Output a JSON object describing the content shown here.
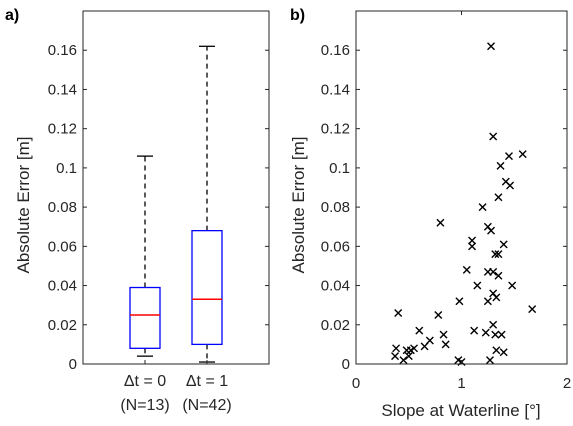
{
  "chart_data": [
    {
      "type": "box",
      "panel_label": "a)",
      "ylabel": "Absolute Error [m]",
      "ylim": [
        0,
        0.18
      ],
      "yticks": [
        "0",
        "0.02",
        "0.04",
        "0.06",
        "0.08",
        "0.1",
        "0.12",
        "0.14",
        "0.16"
      ],
      "categories": [
        {
          "label": "Δt = 0",
          "sublabel": "(N=13)"
        },
        {
          "label": "Δt = 1",
          "sublabel": "(N=42)"
        }
      ],
      "boxes": [
        {
          "min": 0.004,
          "q1": 0.008,
          "median": 0.025,
          "q3": 0.039,
          "max": 0.106
        },
        {
          "min": 0.001,
          "q1": 0.01,
          "median": 0.033,
          "q3": 0.068,
          "max": 0.162
        }
      ],
      "box_color": "#0000ff",
      "median_color": "#ff0000"
    },
    {
      "type": "scatter",
      "panel_label": "b)",
      "xlabel": "Slope at Waterline [°]",
      "ylabel": "Absolute Error [m]",
      "xlim": [
        0,
        2
      ],
      "ylim": [
        0,
        0.18
      ],
      "xticks": [
        "0",
        "1",
        "2"
      ],
      "yticks": [
        "0",
        "0.02",
        "0.04",
        "0.06",
        "0.08",
        "0.1",
        "0.12",
        "0.14",
        "0.16"
      ],
      "marker": "x",
      "marker_color": "#000000",
      "points": [
        [
          0.37,
          0.004
        ],
        [
          0.38,
          0.008
        ],
        [
          0.4,
          0.026
        ],
        [
          0.45,
          0.002
        ],
        [
          0.48,
          0.007
        ],
        [
          0.5,
          0.004
        ],
        [
          0.52,
          0.007
        ],
        [
          0.55,
          0.008
        ],
        [
          0.6,
          0.017
        ],
        [
          0.65,
          0.009
        ],
        [
          0.7,
          0.012
        ],
        [
          0.78,
          0.025
        ],
        [
          0.8,
          0.072
        ],
        [
          0.83,
          0.015
        ],
        [
          0.85,
          0.01
        ],
        [
          0.97,
          0.002
        ],
        [
          0.98,
          0.032
        ],
        [
          1.0,
          0.001
        ],
        [
          1.05,
          0.048
        ],
        [
          1.1,
          0.063
        ],
        [
          1.1,
          0.06
        ],
        [
          1.12,
          0.017
        ],
        [
          1.15,
          0.04
        ],
        [
          1.2,
          0.08
        ],
        [
          1.23,
          0.016
        ],
        [
          1.25,
          0.047
        ],
        [
          1.25,
          0.07
        ],
        [
          1.25,
          0.032
        ],
        [
          1.27,
          0.002
        ],
        [
          1.28,
          0.162
        ],
        [
          1.28,
          0.068
        ],
        [
          1.3,
          0.116
        ],
        [
          1.3,
          0.047
        ],
        [
          1.3,
          0.036
        ],
        [
          1.3,
          0.02
        ],
        [
          1.32,
          0.056
        ],
        [
          1.32,
          0.015
        ],
        [
          1.33,
          0.034
        ],
        [
          1.33,
          0.007
        ],
        [
          1.35,
          0.085
        ],
        [
          1.35,
          0.045
        ],
        [
          1.35,
          0.056
        ],
        [
          1.37,
          0.101
        ],
        [
          1.38,
          0.015
        ],
        [
          1.4,
          0.061
        ],
        [
          1.42,
          0.093
        ],
        [
          1.45,
          0.106
        ],
        [
          1.46,
          0.091
        ],
        [
          1.48,
          0.04
        ],
        [
          1.58,
          0.107
        ],
        [
          1.4,
          0.006
        ],
        [
          1.67,
          0.028
        ]
      ]
    }
  ]
}
